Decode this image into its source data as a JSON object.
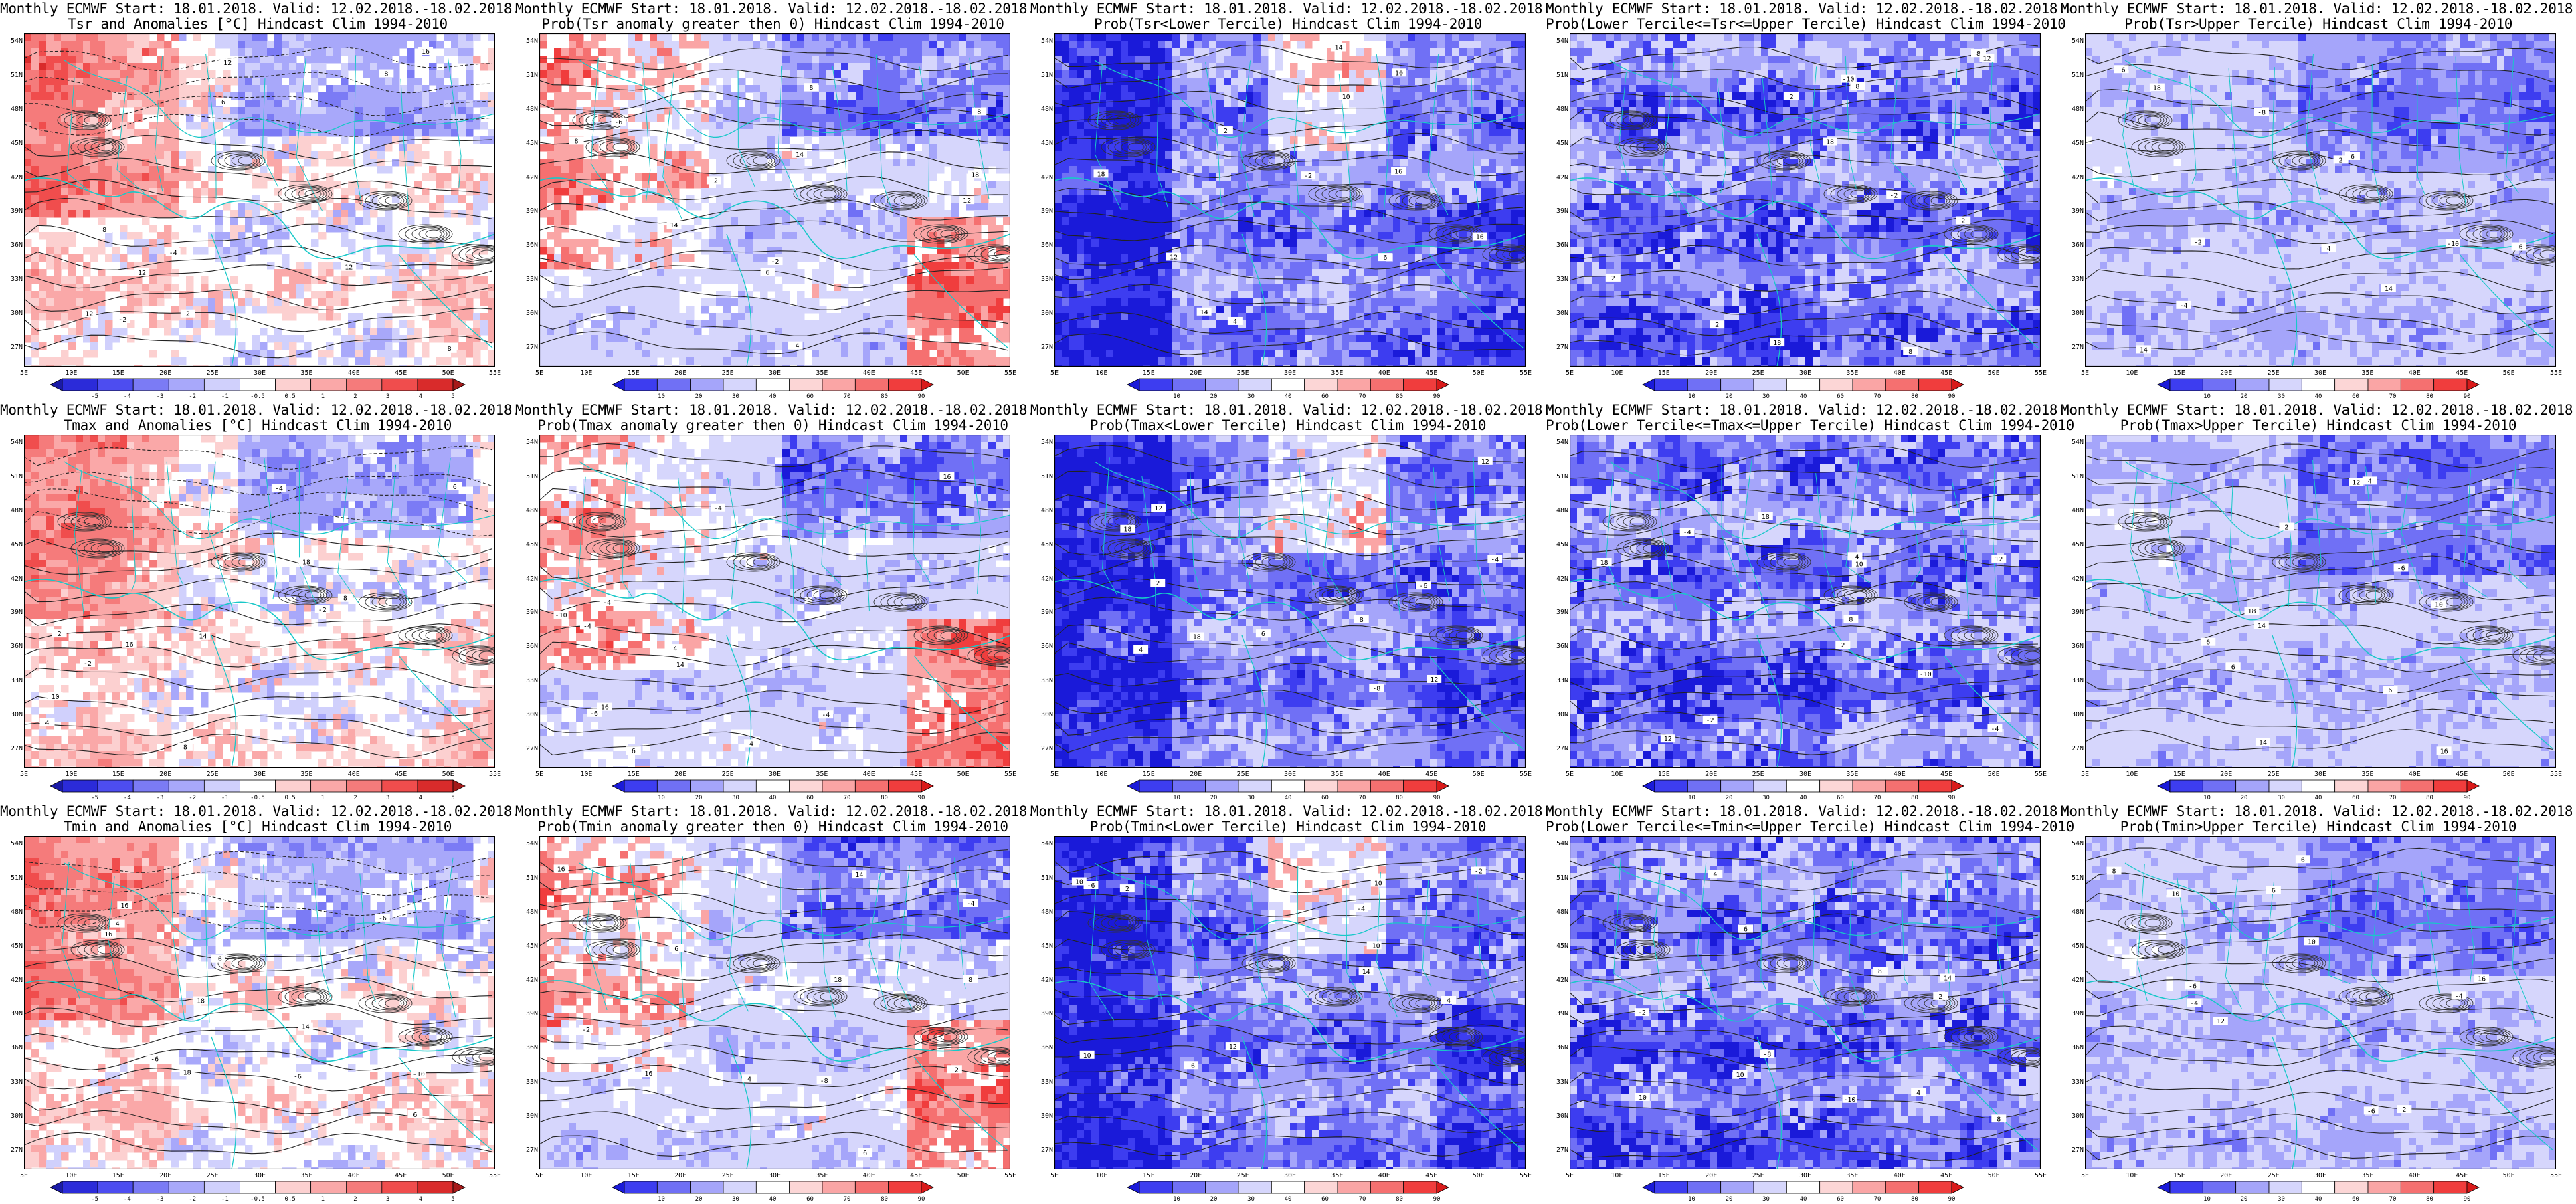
{
  "window": {
    "description_note": ""
  },
  "lat_ticks": [
    "54N",
    "51N",
    "48N",
    "45N",
    "42N",
    "39N",
    "36N",
    "33N",
    "30N",
    "27N"
  ],
  "lon_ticks": [
    "5E",
    "10E",
    "15E",
    "20E",
    "25E",
    "30E",
    "35E",
    "40E",
    "45E",
    "50E",
    "55E"
  ],
  "colorbars": {
    "anomaly": {
      "labels": [
        "-5",
        "-4",
        "-3",
        "-2",
        "-1",
        "-0.5",
        "0.5",
        "1",
        "2",
        "3",
        "4",
        "5"
      ],
      "colors": [
        "#1a1aa6",
        "#2b2bd9",
        "#4d4df0",
        "#7b7bf5",
        "#a8a8fa",
        "#d0d0fc",
        "#ffffff",
        "#fcd0d0",
        "#faa8a8",
        "#f57b7b",
        "#f04d4d",
        "#d92b2b",
        "#a61a1a"
      ]
    },
    "probability": {
      "labels": [
        "10",
        "20",
        "30",
        "40",
        "60",
        "70",
        "80",
        "90"
      ],
      "colors": [
        "#1a1ad9",
        "#3d3df0",
        "#7070f5",
        "#a5a5fa",
        "#d6d6fc",
        "#ffffff",
        "#fcd6d6",
        "#faa5a5",
        "#f57070",
        "#f03d3d",
        "#d91a1a"
      ]
    }
  },
  "panels": [
    {
      "title1": "Monthly ECMWF Start: 18.01.2018. Valid: 12.02.2018.-18.02.2018.",
      "title2": "Tsr and Anomalies [°C] Hindcast Clim 1994-2010",
      "scale": "anomaly",
      "pattern": "anom",
      "seed": 11
    },
    {
      "title1": "Monthly ECMWF Start: 18.01.2018. Valid: 12.02.2018.-18.02.2018.",
      "title2": "Prob(Tsr anomaly greater then 0) Hindcast Clim 1994-2010",
      "scale": "probability",
      "pattern": "pgt0",
      "seed": 12
    },
    {
      "title1": "Monthly ECMWF Start: 18.01.2018. Valid: 12.02.2018.-18.02.2018.",
      "title2": "Prob(Tsr<Lower Tercile) Hindcast Clim 1994-2010",
      "scale": "probability",
      "pattern": "lower",
      "seed": 13
    },
    {
      "title1": "Monthly ECMWF Start: 18.01.2018. Valid: 12.02.2018.-18.02.2018.",
      "title2": "Prob(Lower Tercile<=Tsr<=Upper Tercile) Hindcast Clim 1994-2010",
      "scale": "probability",
      "pattern": "middle",
      "seed": 14
    },
    {
      "title1": "Monthly ECMWF Start: 18.01.2018. Valid: 12.02.2018.-18.02.2018.",
      "title2": "Prob(Tsr>Upper Tercile) Hindcast Clim 1994-2010",
      "scale": "probability",
      "pattern": "upper",
      "seed": 15
    },
    {
      "title1": "Monthly ECMWF Start: 18.01.2018. Valid: 12.02.2018.-18.02.2018.",
      "title2": "Tmax and Anomalies [°C] Hindcast Clim 1994-2010",
      "scale": "anomaly",
      "pattern": "anom",
      "seed": 21
    },
    {
      "title1": "Monthly ECMWF Start: 18.01.2018. Valid: 12.02.2018.-18.02.2018.",
      "title2": "Prob(Tmax anomaly greater then 0) Hindcast Clim 1994-2010",
      "scale": "probability",
      "pattern": "pgt0",
      "seed": 22
    },
    {
      "title1": "Monthly ECMWF Start: 18.01.2018. Valid: 12.02.2018.-18.02.2018.",
      "title2": "Prob(Tmax<Lower Tercile) Hindcast Clim 1994-2010",
      "scale": "probability",
      "pattern": "lower",
      "seed": 23
    },
    {
      "title1": "Monthly ECMWF Start: 18.01.2018. Valid: 12.02.2018.-18.02.2018.",
      "title2": "Prob(Lower Tercile<=Tmax<=Upper Tercile) Hindcast Clim 1994-2010",
      "scale": "probability",
      "pattern": "middle",
      "seed": 24
    },
    {
      "title1": "Monthly ECMWF Start: 18.01.2018. Valid: 12.02.2018.-18.02.2018.",
      "title2": "Prob(Tmax>Upper Tercile) Hindcast Clim 1994-2010",
      "scale": "probability",
      "pattern": "upper",
      "seed": 25
    },
    {
      "title1": "Monthly ECMWF Start: 18.01.2018. Valid: 12.02.2018.-18.02.2018.",
      "title2": "Tmin and Anomalies [°C] Hindcast Clim 1994-2010",
      "scale": "anomaly",
      "pattern": "anom",
      "seed": 31
    },
    {
      "title1": "Monthly ECMWF Start: 18.01.2018. Valid: 12.02.2018.-18.02.2018.",
      "title2": "Prob(Tmin anomaly greater then 0) Hindcast Clim 1994-2010",
      "scale": "probability",
      "pattern": "pgt0",
      "seed": 32
    },
    {
      "title1": "Monthly ECMWF Start: 18.01.2018. Valid: 12.02.2018.-18.02.2018.",
      "title2": "Prob(Tmin<Lower Tercile) Hindcast Clim 1994-2010",
      "scale": "probability",
      "pattern": "lower",
      "seed": 33
    },
    {
      "title1": "Monthly ECMWF Start: 18.01.2018. Valid: 12.02.2018.-18.02.2018.",
      "title2": "Prob(Lower Tercile<=Tmin<=Upper Tercile) Hindcast Clim 1994-2010",
      "scale": "probability",
      "pattern": "middle",
      "seed": 34
    },
    {
      "title1": "Monthly ECMWF Start: 18.01.2018. Valid: 12.02.2018.-18.02.2018.",
      "title2": "Prob(Tmin>Upper Tercile) Hindcast Clim 1994-2010",
      "scale": "probability",
      "pattern": "upper",
      "seed": 35
    }
  ],
  "contour_labels": [
    "-10",
    "-8",
    "-6",
    "-4",
    "-2",
    "2",
    "4",
    "6",
    "8",
    "10",
    "12",
    "14",
    "16",
    "18"
  ]
}
